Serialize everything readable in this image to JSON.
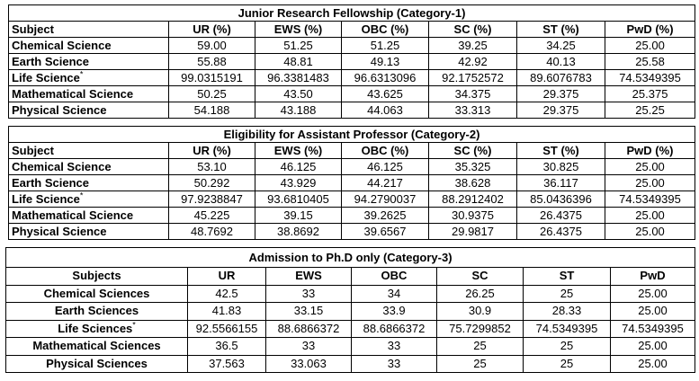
{
  "tables": [
    {
      "title": "Junior Research Fellowship (Category-1)",
      "headers": [
        "Subject",
        "UR (%)",
        "EWS (%)",
        "OBC (%)",
        "SC (%)",
        "ST (%)",
        "PwD (%)"
      ],
      "rows": [
        {
          "subject": "Chemical Science",
          "star": "",
          "values": [
            "59.00",
            "51.25",
            "51.25",
            "39.25",
            "34.25",
            "25.00"
          ]
        },
        {
          "subject": "Earth Science",
          "star": "",
          "values": [
            "55.88",
            "48.81",
            "49.13",
            "42.92",
            "40.13",
            "25.58"
          ]
        },
        {
          "subject": "Life Science",
          "star": "*",
          "values": [
            "99.0315191",
            "96.3381483",
            "96.6313096",
            "92.1752572",
            "89.6076783",
            "74.5349395"
          ]
        },
        {
          "subject": "Mathematical Science",
          "star": "",
          "values": [
            "50.25",
            "43.50",
            "43.625",
            "34.375",
            "29.375",
            "25.375"
          ]
        },
        {
          "subject": "Physical Science",
          "star": "",
          "values": [
            "54.188",
            "43.188",
            "44.063",
            "33.313",
            "29.375",
            "25.25"
          ]
        }
      ]
    },
    {
      "title": "Eligibility for Assistant Professor (Category-2)",
      "headers": [
        "Subject",
        "UR (%)",
        "EWS (%)",
        "OBC (%)",
        "SC (%)",
        "ST (%)",
        "PwD (%)"
      ],
      "rows": [
        {
          "subject": "Chemical Science",
          "star": "",
          "values": [
            "53.10",
            "46.125",
            "46.125",
            "35.325",
            "30.825",
            "25.00"
          ]
        },
        {
          "subject": "Earth Science",
          "star": "",
          "values": [
            "50.292",
            "43.929",
            "44.217",
            "38.628",
            "36.117",
            "25.00"
          ]
        },
        {
          "subject": "Life Science",
          "star": "*",
          "values": [
            "97.9238847",
            "93.6810405",
            "94.2790037",
            "88.2912402",
            "85.0436396",
            "74.5349395"
          ]
        },
        {
          "subject": "Mathematical Science",
          "star": "",
          "values": [
            "45.225",
            "39.15",
            "39.2625",
            "30.9375",
            "26.4375",
            "25.00"
          ]
        },
        {
          "subject": "Physical Science",
          "star": "",
          "values": [
            "48.7692",
            "38.8692",
            "39.6567",
            "29.9817",
            "26.4375",
            "25.00"
          ]
        }
      ]
    },
    {
      "title": "Admission to Ph.D only (Category-3)",
      "headers": [
        "Subjects",
        "UR",
        "EWS",
        "OBC",
        "SC",
        "ST",
        "PwD"
      ],
      "rows": [
        {
          "subject": "Chemical Sciences",
          "star": "",
          "values": [
            "42.5",
            "33",
            "34",
            "26.25",
            "25",
            "25.00"
          ]
        },
        {
          "subject": "Earth Sciences",
          "star": "",
          "values": [
            "41.83",
            "33.15",
            "33.9",
            "30.9",
            "28.33",
            "25.00"
          ]
        },
        {
          "subject": "Life Sciences",
          "star": "*",
          "values": [
            "92.5566155",
            "88.6866372",
            "88.6866372",
            "75.7299852",
            "74.5349395",
            "74.5349395"
          ]
        },
        {
          "subject": "Mathematical Sciences",
          "star": "",
          "values": [
            "36.5",
            "33",
            "33",
            "25",
            "25",
            "25.00"
          ]
        },
        {
          "subject": "Physical Sciences",
          "star": "",
          "values": [
            "37.563",
            "33.063",
            "33",
            "25",
            "25",
            "25.00"
          ]
        }
      ]
    }
  ]
}
